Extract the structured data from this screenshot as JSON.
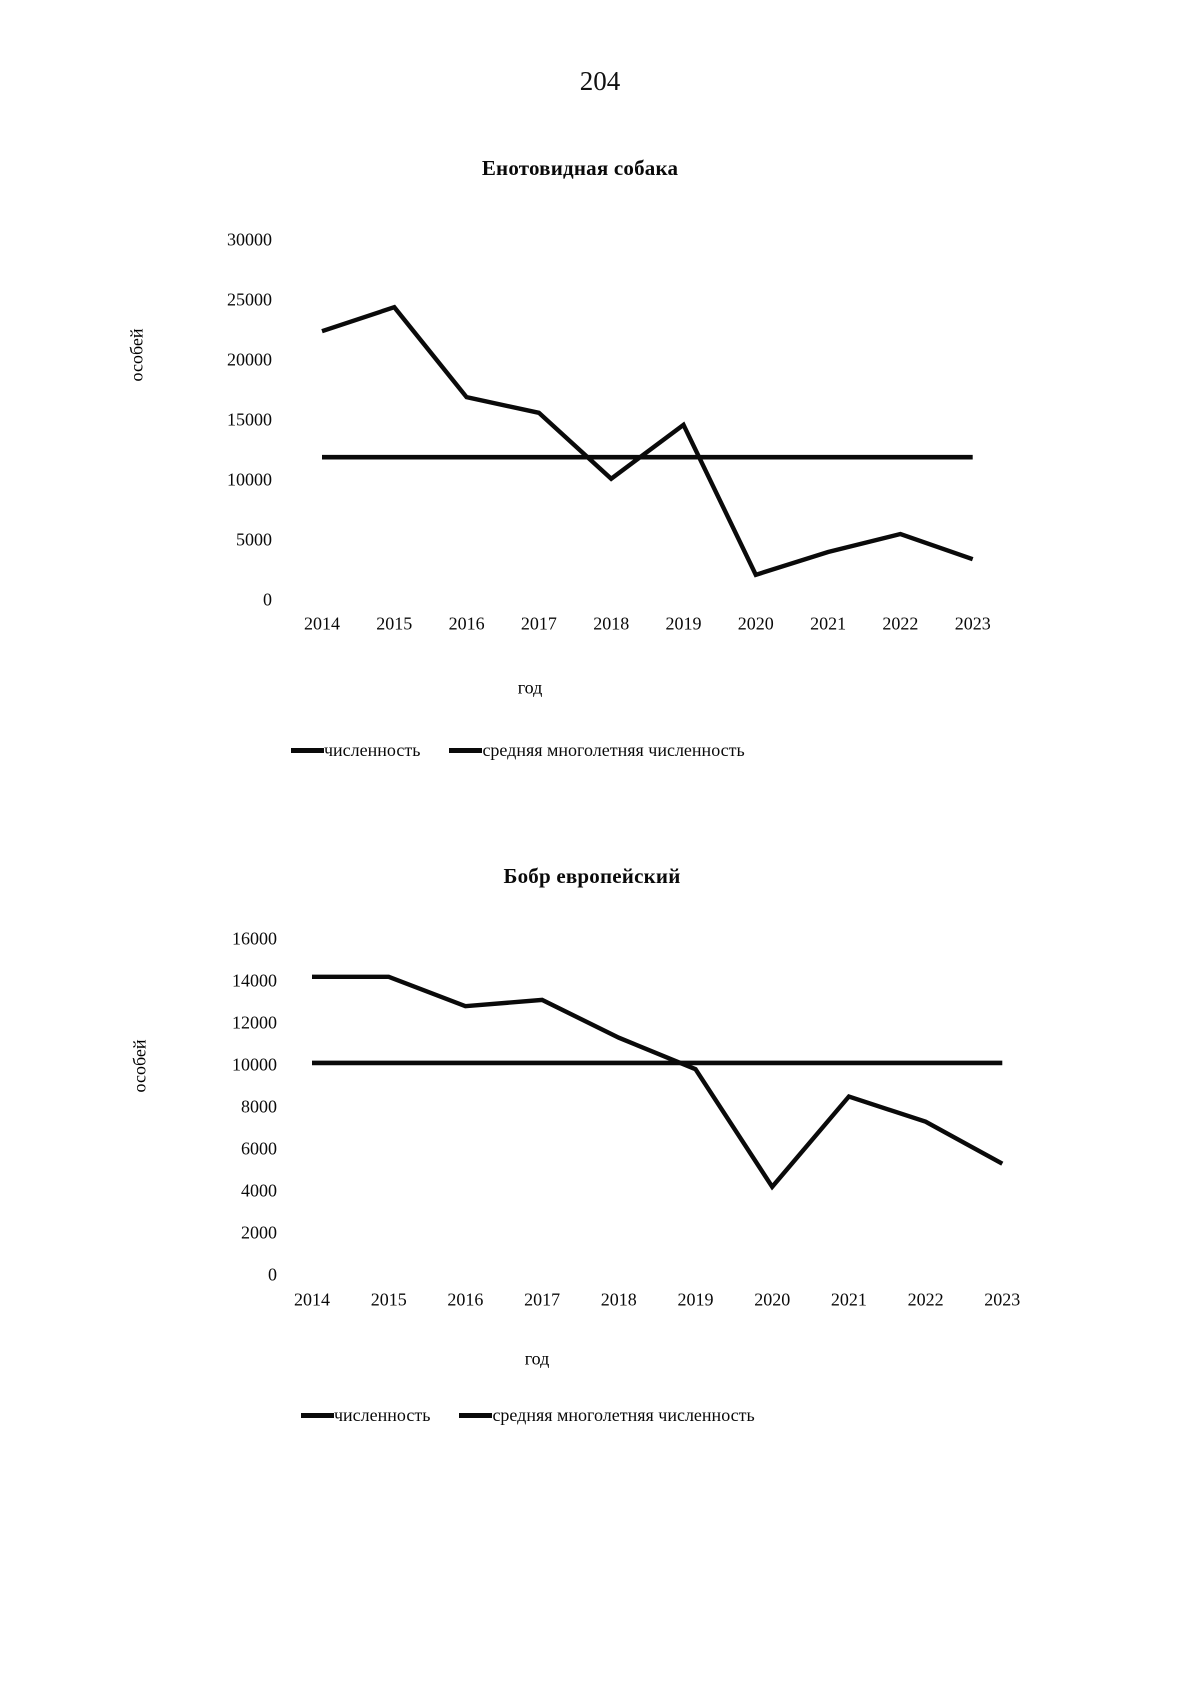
{
  "page": {
    "number": "204"
  },
  "chart_data": [
    {
      "type": "line",
      "title": "Енотовидная собака",
      "xlabel": "год",
      "ylabel": "особей",
      "categories": [
        "2014",
        "2015",
        "2016",
        "2017",
        "2018",
        "2019",
        "2020",
        "2021",
        "2022",
        "2023"
      ],
      "series": [
        {
          "name": "численность",
          "values": [
            22400,
            24400,
            16900,
            15600,
            10100,
            14600,
            2100,
            4000,
            5500,
            3400
          ]
        },
        {
          "name": "средняя многолетняя численность",
          "values": [
            11900,
            11900,
            11900,
            11900,
            11900,
            11900,
            11900,
            11900,
            11900,
            11900
          ]
        }
      ],
      "ylim": [
        0,
        30000
      ],
      "ytick_step": 5000,
      "grid": false,
      "axis_lines": false,
      "legend_position": "bottom",
      "line_color": "#000000"
    },
    {
      "type": "line",
      "title": "Бобр европейский",
      "xlabel": "год",
      "ylabel": "особей",
      "categories": [
        "2014",
        "2015",
        "2016",
        "2017",
        "2018",
        "2019",
        "2020",
        "2021",
        "2022",
        "2023"
      ],
      "series": [
        {
          "name": "численность",
          "values": [
            14200,
            14200,
            12800,
            13100,
            11300,
            9800,
            4200,
            8500,
            7300,
            5300
          ]
        },
        {
          "name": "средняя многолетняя численность",
          "values": [
            10100,
            10100,
            10100,
            10100,
            10100,
            10100,
            10100,
            10100,
            10100,
            10100
          ]
        }
      ],
      "ylim": [
        0,
        16000
      ],
      "ytick_step": 2000,
      "grid": false,
      "axis_lines": false,
      "legend_position": "bottom",
      "line_color": "#000000"
    }
  ]
}
